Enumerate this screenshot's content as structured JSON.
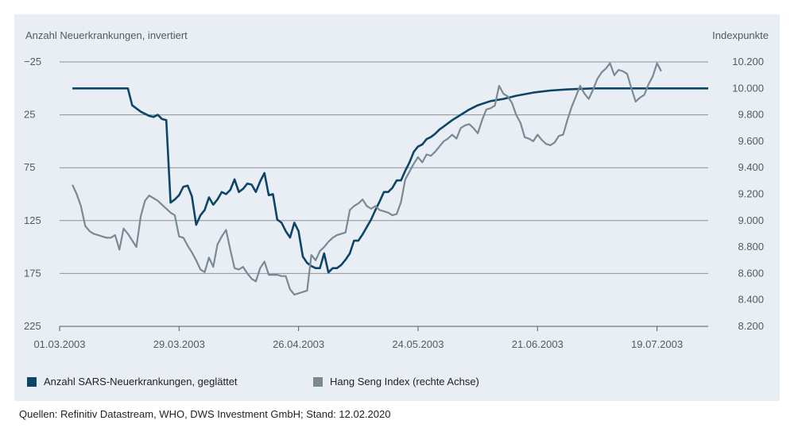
{
  "chart_data": {
    "type": "line",
    "left_axis_title": "Anzahl Neuerkrankungen, invertiert",
    "right_axis_title": "Indexpunkte",
    "left_axis": {
      "inverted": true,
      "range": [
        -25,
        225
      ],
      "tick_labels": [
        "−25",
        "25",
        "75",
        "125",
        "175",
        "225"
      ],
      "ticks": [
        -25,
        25,
        75,
        125,
        175,
        225
      ]
    },
    "right_axis": {
      "range": [
        8200,
        10200
      ],
      "tick_labels": [
        "10.200",
        "10.000",
        "9.800",
        "9.600",
        "9.400",
        "9.200",
        "9.000",
        "8.800",
        "8.600",
        "8.400",
        "8.200"
      ],
      "ticks": [
        10200,
        10000,
        9800,
        9600,
        9400,
        9200,
        9000,
        8800,
        8600,
        8400,
        8200
      ]
    },
    "x_axis": {
      "start": "2003-03-01",
      "end": "2003-07-31",
      "ticks": [
        "2003-03-01",
        "2003-03-29",
        "2003-04-26",
        "2003-05-24",
        "2003-06-21",
        "2003-07-19"
      ],
      "tick_labels": [
        "01.03.2003",
        "29.03.2003",
        "26.04.2003",
        "24.05.2003",
        "21.06.2003",
        "19.07.2003"
      ]
    },
    "grid": "horizontal",
    "legend_position": "bottom-left",
    "series": [
      {
        "name": "Anzahl SARS-Neuerkrankungen, geglättet",
        "axis": "left",
        "color": "#0d4566",
        "points": [
          [
            "2003-03-04",
            0
          ],
          [
            "2003-03-17",
            0
          ],
          [
            "2003-03-18",
            16
          ],
          [
            "2003-03-19",
            19
          ],
          [
            "2003-03-20",
            22
          ],
          [
            "2003-03-21",
            24
          ],
          [
            "2003-03-22",
            26
          ],
          [
            "2003-03-23",
            27
          ],
          [
            "2003-03-24",
            25
          ],
          [
            "2003-03-25",
            29
          ],
          [
            "2003-03-26",
            30
          ],
          [
            "2003-03-27",
            108
          ],
          [
            "2003-03-28",
            105
          ],
          [
            "2003-03-29",
            101
          ],
          [
            "2003-03-30",
            93
          ],
          [
            "2003-03-31",
            92
          ],
          [
            "2003-04-01",
            102
          ],
          [
            "2003-04-02",
            129
          ],
          [
            "2003-04-03",
            120
          ],
          [
            "2003-04-04",
            115
          ],
          [
            "2003-04-05",
            103
          ],
          [
            "2003-04-06",
            110
          ],
          [
            "2003-04-07",
            105
          ],
          [
            "2003-04-08",
            98
          ],
          [
            "2003-04-09",
            100
          ],
          [
            "2003-04-10",
            96
          ],
          [
            "2003-04-11",
            86
          ],
          [
            "2003-04-12",
            98
          ],
          [
            "2003-04-13",
            95
          ],
          [
            "2003-04-14",
            90
          ],
          [
            "2003-04-15",
            91
          ],
          [
            "2003-04-16",
            98
          ],
          [
            "2003-04-17",
            88
          ],
          [
            "2003-04-18",
            80
          ],
          [
            "2003-04-19",
            101
          ],
          [
            "2003-04-20",
            100
          ],
          [
            "2003-04-21",
            124
          ],
          [
            "2003-04-22",
            127
          ],
          [
            "2003-04-23",
            135
          ],
          [
            "2003-04-24",
            141
          ],
          [
            "2003-04-25",
            127
          ],
          [
            "2003-04-26",
            135
          ],
          [
            "2003-04-27",
            159
          ],
          [
            "2003-04-28",
            165
          ],
          [
            "2003-04-29",
            168
          ],
          [
            "2003-04-30",
            170
          ],
          [
            "2003-05-01",
            170
          ],
          [
            "2003-05-02",
            156
          ],
          [
            "2003-05-03",
            174
          ],
          [
            "2003-05-04",
            170
          ],
          [
            "2003-05-05",
            170
          ],
          [
            "2003-05-06",
            167
          ],
          [
            "2003-05-07",
            162
          ],
          [
            "2003-05-08",
            156
          ],
          [
            "2003-05-09",
            144
          ],
          [
            "2003-05-10",
            144
          ],
          [
            "2003-05-11",
            138
          ],
          [
            "2003-05-12",
            131
          ],
          [
            "2003-05-13",
            124
          ],
          [
            "2003-05-14",
            115
          ],
          [
            "2003-05-15",
            107
          ],
          [
            "2003-05-16",
            98
          ],
          [
            "2003-05-17",
            98
          ],
          [
            "2003-05-18",
            94
          ],
          [
            "2003-05-19",
            87
          ],
          [
            "2003-05-20",
            87
          ],
          [
            "2003-05-21",
            78
          ],
          [
            "2003-05-22",
            70
          ],
          [
            "2003-05-23",
            60
          ],
          [
            "2003-05-24",
            55
          ],
          [
            "2003-05-25",
            53
          ],
          [
            "2003-05-26",
            48
          ],
          [
            "2003-05-27",
            46
          ],
          [
            "2003-05-28",
            43
          ],
          [
            "2003-05-29",
            39
          ],
          [
            "2003-05-30",
            36
          ],
          [
            "2003-06-01",
            30
          ],
          [
            "2003-06-03",
            25
          ],
          [
            "2003-06-05",
            20
          ],
          [
            "2003-06-07",
            16
          ],
          [
            "2003-06-10",
            12
          ],
          [
            "2003-06-13",
            10
          ],
          [
            "2003-06-16",
            7
          ],
          [
            "2003-06-20",
            4
          ],
          [
            "2003-06-24",
            2
          ],
          [
            "2003-06-28",
            1
          ],
          [
            "2003-07-04",
            0
          ],
          [
            "2003-07-31",
            0
          ]
        ]
      },
      {
        "name": "Hang Seng Index (rechte Achse)",
        "axis": "right",
        "color": "#7a8a94",
        "points": [
          [
            "2003-03-04",
            9270
          ],
          [
            "2003-03-05",
            9200
          ],
          [
            "2003-03-06",
            9110
          ],
          [
            "2003-03-07",
            8960
          ],
          [
            "2003-03-08",
            8920
          ],
          [
            "2003-03-09",
            8900
          ],
          [
            "2003-03-10",
            8890
          ],
          [
            "2003-03-11",
            8880
          ],
          [
            "2003-03-12",
            8870
          ],
          [
            "2003-03-13",
            8870
          ],
          [
            "2003-03-14",
            8890
          ],
          [
            "2003-03-15",
            8780
          ],
          [
            "2003-03-16",
            8940
          ],
          [
            "2003-03-17",
            8900
          ],
          [
            "2003-03-18",
            8850
          ],
          [
            "2003-03-19",
            8800
          ],
          [
            "2003-03-20",
            9030
          ],
          [
            "2003-03-21",
            9150
          ],
          [
            "2003-03-22",
            9190
          ],
          [
            "2003-03-23",
            9170
          ],
          [
            "2003-03-24",
            9150
          ],
          [
            "2003-03-25",
            9120
          ],
          [
            "2003-03-26",
            9090
          ],
          [
            "2003-03-27",
            9060
          ],
          [
            "2003-03-28",
            9040
          ],
          [
            "2003-03-29",
            8880
          ],
          [
            "2003-03-30",
            8870
          ],
          [
            "2003-03-31",
            8810
          ],
          [
            "2003-04-01",
            8760
          ],
          [
            "2003-04-02",
            8700
          ],
          [
            "2003-04-03",
            8630
          ],
          [
            "2003-04-04",
            8610
          ],
          [
            "2003-04-05",
            8720
          ],
          [
            "2003-04-06",
            8650
          ],
          [
            "2003-04-07",
            8820
          ],
          [
            "2003-04-08",
            8880
          ],
          [
            "2003-04-09",
            8930
          ],
          [
            "2003-04-10",
            8780
          ],
          [
            "2003-04-11",
            8640
          ],
          [
            "2003-04-12",
            8630
          ],
          [
            "2003-04-13",
            8650
          ],
          [
            "2003-04-14",
            8600
          ],
          [
            "2003-04-15",
            8560
          ],
          [
            "2003-04-16",
            8540
          ],
          [
            "2003-04-17",
            8640
          ],
          [
            "2003-04-18",
            8690
          ],
          [
            "2003-04-19",
            8590
          ],
          [
            "2003-04-20",
            8590
          ],
          [
            "2003-04-21",
            8590
          ],
          [
            "2003-04-22",
            8580
          ],
          [
            "2003-04-23",
            8580
          ],
          [
            "2003-04-24",
            8480
          ],
          [
            "2003-04-25",
            8440
          ],
          [
            "2003-04-26",
            8450
          ],
          [
            "2003-04-27",
            8460
          ],
          [
            "2003-04-28",
            8470
          ],
          [
            "2003-04-29",
            8740
          ],
          [
            "2003-04-30",
            8700
          ],
          [
            "2003-05-01",
            8770
          ],
          [
            "2003-05-02",
            8800
          ],
          [
            "2003-05-03",
            8840
          ],
          [
            "2003-05-04",
            8870
          ],
          [
            "2003-05-05",
            8890
          ],
          [
            "2003-05-06",
            8900
          ],
          [
            "2003-05-07",
            8910
          ],
          [
            "2003-05-08",
            9080
          ],
          [
            "2003-05-09",
            9110
          ],
          [
            "2003-05-10",
            9130
          ],
          [
            "2003-05-11",
            9160
          ],
          [
            "2003-05-12",
            9110
          ],
          [
            "2003-05-13",
            9090
          ],
          [
            "2003-05-14",
            9110
          ],
          [
            "2003-05-15",
            9080
          ],
          [
            "2003-05-16",
            9070
          ],
          [
            "2003-05-17",
            9060
          ],
          [
            "2003-05-18",
            9040
          ],
          [
            "2003-05-19",
            9050
          ],
          [
            "2003-05-20",
            9140
          ],
          [
            "2003-05-21",
            9310
          ],
          [
            "2003-05-22",
            9370
          ],
          [
            "2003-05-23",
            9430
          ],
          [
            "2003-05-24",
            9480
          ],
          [
            "2003-05-25",
            9440
          ],
          [
            "2003-05-26",
            9500
          ],
          [
            "2003-05-27",
            9490
          ],
          [
            "2003-05-28",
            9520
          ],
          [
            "2003-05-29",
            9560
          ],
          [
            "2003-05-30",
            9600
          ],
          [
            "2003-05-31",
            9620
          ],
          [
            "2003-06-01",
            9650
          ],
          [
            "2003-06-02",
            9620
          ],
          [
            "2003-06-03",
            9700
          ],
          [
            "2003-06-04",
            9720
          ],
          [
            "2003-06-05",
            9730
          ],
          [
            "2003-06-06",
            9700
          ],
          [
            "2003-06-07",
            9660
          ],
          [
            "2003-06-08",
            9760
          ],
          [
            "2003-06-09",
            9840
          ],
          [
            "2003-06-10",
            9850
          ],
          [
            "2003-06-11",
            9870
          ],
          [
            "2003-06-12",
            10020
          ],
          [
            "2003-06-13",
            9960
          ],
          [
            "2003-06-14",
            9940
          ],
          [
            "2003-06-15",
            9890
          ],
          [
            "2003-06-16",
            9800
          ],
          [
            "2003-06-17",
            9740
          ],
          [
            "2003-06-18",
            9630
          ],
          [
            "2003-06-19",
            9620
          ],
          [
            "2003-06-20",
            9600
          ],
          [
            "2003-06-21",
            9650
          ],
          [
            "2003-06-22",
            9610
          ],
          [
            "2003-06-23",
            9580
          ],
          [
            "2003-06-24",
            9570
          ],
          [
            "2003-06-25",
            9590
          ],
          [
            "2003-06-26",
            9640
          ],
          [
            "2003-06-27",
            9650
          ],
          [
            "2003-06-28",
            9760
          ],
          [
            "2003-06-29",
            9860
          ],
          [
            "2003-06-30",
            9940
          ],
          [
            "2003-07-01",
            10020
          ],
          [
            "2003-07-02",
            9960
          ],
          [
            "2003-07-03",
            9920
          ],
          [
            "2003-07-04",
            9990
          ],
          [
            "2003-07-05",
            10070
          ],
          [
            "2003-07-06",
            10120
          ],
          [
            "2003-07-07",
            10150
          ],
          [
            "2003-07-08",
            10190
          ],
          [
            "2003-07-09",
            10100
          ],
          [
            "2003-07-10",
            10140
          ],
          [
            "2003-07-11",
            10130
          ],
          [
            "2003-07-12",
            10110
          ],
          [
            "2003-07-13",
            10000
          ],
          [
            "2003-07-14",
            9900
          ],
          [
            "2003-07-15",
            9930
          ],
          [
            "2003-07-16",
            9950
          ],
          [
            "2003-07-17",
            10030
          ],
          [
            "2003-07-18",
            10090
          ],
          [
            "2003-07-19",
            10190
          ],
          [
            "2003-07-20",
            10130
          ]
        ]
      }
    ]
  },
  "legend": [
    {
      "label": "Anzahl SARS-Neuerkrankungen, geglättet",
      "color": "#0d4566"
    },
    {
      "label": "Hang Seng Index (rechte Achse)",
      "color": "#7a8a94"
    }
  ],
  "source_note": "Quellen: Refinitiv Datastream, WHO, DWS Investment GmbH; Stand: 12.02.2020"
}
